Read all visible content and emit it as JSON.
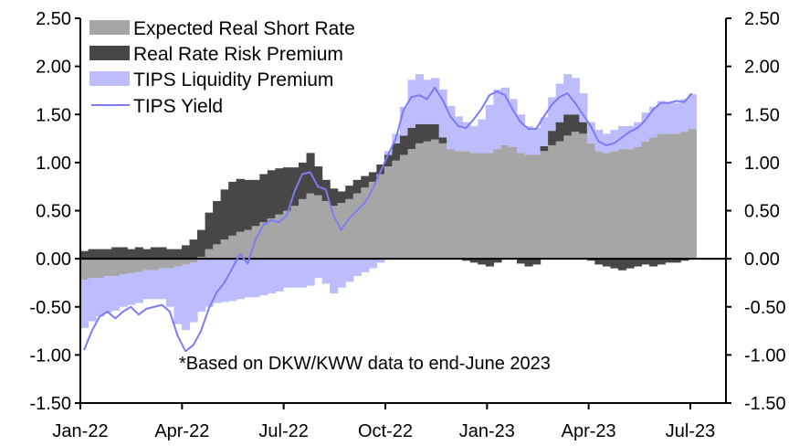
{
  "chart_data": {
    "type": "area",
    "title": "",
    "xlabel": "",
    "ylabel": "",
    "ylim": [
      -1.5,
      2.5
    ],
    "y_ticks": [
      "2.50",
      "2.00",
      "1.50",
      "1.00",
      "0.50",
      "0.00",
      "-0.50",
      "-1.00",
      "-1.50"
    ],
    "y_tick_values": [
      2.5,
      2.0,
      1.5,
      1.0,
      0.5,
      0.0,
      -0.5,
      -1.0,
      -1.5
    ],
    "x_ticks": [
      "Jan-22",
      "Apr-22",
      "Jul-22",
      "Oct-22",
      "Jan-23",
      "Apr-23",
      "Jul-23"
    ],
    "x_tick_months": [
      0,
      3,
      6,
      9,
      12,
      15,
      18
    ],
    "x_range_months": [
      0,
      18
    ],
    "legend_position": "top-left",
    "grid": false,
    "annotation": "*Based on DKW/KWW data to end-June 2023",
    "x_months": [
      0.0,
      0.23,
      0.46,
      0.69,
      0.92,
      1.15,
      1.38,
      1.61,
      1.84,
      2.07,
      2.3,
      2.53,
      2.76,
      2.99,
      3.22,
      3.45,
      3.68,
      3.91,
      4.14,
      4.37,
      4.6,
      4.83,
      5.06,
      5.29,
      5.52,
      5.75,
      5.98,
      6.21,
      6.44,
      6.67,
      6.9,
      7.13,
      7.36,
      7.59,
      7.82,
      8.05,
      8.28,
      8.51,
      8.74,
      8.97,
      9.2,
      9.43,
      9.66,
      9.89,
      10.12,
      10.35,
      10.58,
      10.81,
      11.04,
      11.27,
      11.5,
      11.73,
      11.96,
      12.19,
      12.42,
      12.65,
      12.88,
      13.11,
      13.34,
      13.57,
      13.8,
      14.03,
      14.26,
      14.49,
      14.72,
      14.95,
      15.18,
      15.41,
      15.64,
      15.87,
      16.1,
      16.33,
      16.56,
      16.79,
      17.02,
      17.25,
      17.48,
      17.71,
      17.94
    ],
    "series": [
      {
        "name": "Expected Real Short Rate",
        "kind": "area",
        "color": "#a6a6a6",
        "values": [
          -0.22,
          -0.2,
          -0.2,
          -0.18,
          -0.18,
          -0.16,
          -0.15,
          -0.14,
          -0.12,
          -0.12,
          -0.1,
          -0.1,
          -0.08,
          -0.06,
          -0.04,
          0.02,
          0.1,
          0.15,
          0.2,
          0.24,
          0.28,
          0.3,
          0.34,
          0.38,
          0.42,
          0.46,
          0.5,
          0.55,
          0.62,
          0.68,
          0.66,
          0.6,
          0.55,
          0.58,
          0.62,
          0.68,
          0.74,
          0.8,
          0.88,
          0.96,
          1.02,
          1.08,
          1.14,
          1.2,
          1.22,
          1.24,
          1.2,
          1.14,
          1.12,
          1.12,
          1.1,
          1.1,
          1.1,
          1.14,
          1.18,
          1.16,
          1.1,
          1.08,
          1.08,
          1.12,
          1.18,
          1.22,
          1.28,
          1.32,
          1.3,
          1.2,
          1.12,
          1.1,
          1.12,
          1.14,
          1.14,
          1.16,
          1.22,
          1.26,
          1.3,
          1.3,
          1.3,
          1.32,
          1.35
        ]
      },
      {
        "name": "Real Rate Risk Premium",
        "kind": "area",
        "color": "#474747",
        "values": [
          0.08,
          0.1,
          0.1,
          0.1,
          0.12,
          0.12,
          0.1,
          0.12,
          0.1,
          0.12,
          0.12,
          0.1,
          0.1,
          0.14,
          0.2,
          0.28,
          0.38,
          0.45,
          0.52,
          0.56,
          0.55,
          0.52,
          0.48,
          0.5,
          0.5,
          0.48,
          0.45,
          0.4,
          0.38,
          0.42,
          0.3,
          0.22,
          0.18,
          0.12,
          0.14,
          0.14,
          0.12,
          0.1,
          0.1,
          0.12,
          0.18,
          0.2,
          0.22,
          0.2,
          0.18,
          0.16,
          0.06,
          0.0,
          0.0,
          -0.02,
          -0.04,
          -0.06,
          -0.08,
          -0.04,
          0.0,
          0.0,
          -0.05,
          -0.08,
          -0.06,
          0.05,
          0.15,
          0.2,
          0.22,
          0.18,
          0.12,
          -0.02,
          -0.06,
          -0.08,
          -0.1,
          -0.12,
          -0.1,
          -0.08,
          -0.06,
          -0.08,
          -0.06,
          -0.04,
          -0.04,
          -0.02,
          0.0
        ]
      },
      {
        "name": "TIPS Liquidity Premium",
        "kind": "area",
        "color": "#bdbdfd",
        "values": [
          -0.5,
          -0.45,
          -0.4,
          -0.38,
          -0.36,
          -0.34,
          -0.33,
          -0.32,
          -0.3,
          -0.3,
          -0.32,
          -0.4,
          -0.6,
          -0.68,
          -0.62,
          -0.55,
          -0.5,
          -0.46,
          -0.45,
          -0.44,
          -0.42,
          -0.4,
          -0.4,
          -0.38,
          -0.36,
          -0.34,
          -0.3,
          -0.3,
          -0.3,
          -0.28,
          -0.2,
          -0.26,
          -0.36,
          -0.3,
          -0.24,
          -0.18,
          -0.14,
          -0.1,
          -0.04,
          0.04,
          0.1,
          0.3,
          0.5,
          0.52,
          0.46,
          0.48,
          0.5,
          0.45,
          0.36,
          0.3,
          0.28,
          0.35,
          0.5,
          0.62,
          0.6,
          0.5,
          0.4,
          0.3,
          0.28,
          0.3,
          0.35,
          0.4,
          0.42,
          0.38,
          0.3,
          0.22,
          0.22,
          0.2,
          0.22,
          0.24,
          0.24,
          0.26,
          0.3,
          0.32,
          0.34,
          0.32,
          0.32,
          0.34,
          0.36
        ]
      },
      {
        "name": "TIPS Yield",
        "kind": "line",
        "color": "#7b7bf5",
        "values": [
          -0.95,
          -0.75,
          -0.6,
          -0.55,
          -0.62,
          -0.55,
          -0.5,
          -0.58,
          -0.52,
          -0.5,
          -0.48,
          -0.55,
          -0.8,
          -0.96,
          -0.9,
          -0.75,
          -0.52,
          -0.35,
          -0.25,
          -0.1,
          0.05,
          -0.05,
          0.2,
          0.35,
          0.4,
          0.38,
          0.45,
          0.7,
          0.88,
          0.9,
          0.75,
          0.72,
          0.45,
          0.3,
          0.42,
          0.5,
          0.58,
          0.72,
          0.9,
          1.08,
          1.25,
          1.55,
          1.68,
          1.7,
          1.66,
          1.78,
          1.65,
          1.48,
          1.38,
          1.36,
          1.45,
          1.56,
          1.7,
          1.74,
          1.7,
          1.55,
          1.42,
          1.35,
          1.35,
          1.48,
          1.6,
          1.68,
          1.72,
          1.62,
          1.5,
          1.38,
          1.22,
          1.18,
          1.2,
          1.26,
          1.32,
          1.36,
          1.44,
          1.55,
          1.62,
          1.62,
          1.64,
          1.63,
          1.72
        ]
      }
    ]
  }
}
